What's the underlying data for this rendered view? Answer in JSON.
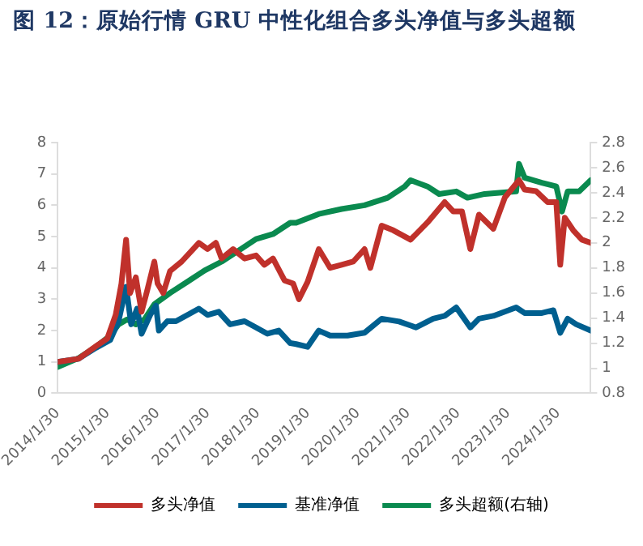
{
  "chart_data": {
    "type": "line",
    "title": "图 12：原始行情 GRU 中性化组合多头净值与多头超额",
    "xlim": [
      "2014-01-30",
      "2024-09-23"
    ],
    "xticks": [
      {
        "value": "2014-01-30",
        "label": "2014/1/30"
      },
      {
        "value": "2015-01-30",
        "label": "2015/1/30"
      },
      {
        "value": "2016-01-30",
        "label": "2016/1/30"
      },
      {
        "value": "2017-01-30",
        "label": "2017/1/30"
      },
      {
        "value": "2018-01-30",
        "label": "2018/1/30"
      },
      {
        "value": "2019-01-30",
        "label": "2019/1/30"
      },
      {
        "value": "2020-01-30",
        "label": "2020/1/30"
      },
      {
        "value": "2021-01-30",
        "label": "2021/1/30"
      },
      {
        "value": "2022-01-30",
        "label": "2022/1/30"
      },
      {
        "value": "2023-01-30",
        "label": "2023/1/30"
      },
      {
        "value": "2024-01-30",
        "label": "2024/1/30"
      }
    ],
    "ylim": [
      0,
      8
    ],
    "yticks": [
      0,
      1,
      2,
      3,
      4,
      5,
      6,
      7,
      8
    ],
    "y2lim": [
      0.8,
      2.8
    ],
    "y2ticks": [
      0.8,
      1,
      1.2,
      1.4,
      1.6,
      1.8,
      2,
      2.2,
      2.4,
      2.6,
      2.8
    ],
    "grid": false,
    "legend": "bottom",
    "marker": "none",
    "line_style": "solid",
    "series": [
      {
        "name": "多头净值",
        "color": "#c0312b",
        "x": [
          "2014-01-30",
          "2014-07-01",
          "2014-11-05",
          "2015-01-27",
          "2015-03-29",
          "2015-05-10",
          "2015-06-13",
          "2015-07-12",
          "2015-08-23",
          "2015-10-04",
          "2015-11-15",
          "2016-01-05",
          "2016-01-29",
          "2016-03-10",
          "2016-04-29",
          "2016-07-22",
          "2016-10-14",
          "2016-11-25",
          "2017-01-27",
          "2017-03-29",
          "2017-05-10",
          "2017-08-02",
          "2017-10-24",
          "2018-01-16",
          "2018-03-18",
          "2018-05-20",
          "2018-08-12",
          "2018-10-14",
          "2018-11-25",
          "2019-01-27",
          "2019-04-19",
          "2019-07-11",
          "2019-10-03",
          "2019-12-26",
          "2020-03-18",
          "2020-04-29",
          "2020-07-21",
          "2020-10-14",
          "2021-02-17",
          "2021-06-20",
          "2021-10-24",
          "2021-12-26",
          "2022-02-27",
          "2022-04-29",
          "2022-07-01",
          "2022-10-14",
          "2023-01-06",
          "2023-04-19",
          "2023-05-30",
          "2023-08-22",
          "2023-11-14",
          "2024-01-16",
          "2024-02-14",
          "2024-03-18",
          "2024-05-19",
          "2024-07-21",
          "2024-09-23"
        ],
        "values": [
          1.0,
          1.1,
          1.5,
          1.75,
          2.5,
          3.5,
          4.9,
          3.2,
          3.7,
          2.6,
          3.3,
          4.2,
          3.5,
          3.2,
          3.9,
          4.2,
          4.6,
          4.8,
          4.6,
          4.8,
          4.3,
          4.6,
          4.3,
          4.4,
          4.1,
          4.3,
          3.6,
          3.5,
          3.0,
          3.55,
          4.6,
          4.0,
          4.1,
          4.2,
          4.6,
          4.0,
          5.35,
          5.2,
          4.9,
          5.45,
          6.1,
          5.8,
          5.8,
          4.6,
          5.7,
          5.25,
          6.25,
          6.8,
          6.5,
          6.45,
          6.1,
          6.1,
          4.1,
          5.6,
          5.2,
          4.9,
          4.8
        ]
      },
      {
        "name": "基准净值",
        "color": "#005f8f",
        "x": [
          "2014-01-30",
          "2014-07-01",
          "2014-11-05",
          "2015-02-17",
          "2015-04-19",
          "2015-06-13",
          "2015-07-20",
          "2015-09-01",
          "2015-10-04",
          "2015-12-06",
          "2016-01-17",
          "2016-02-07",
          "2016-04-09",
          "2016-06-11",
          "2016-09-03",
          "2016-11-25",
          "2017-01-27",
          "2017-04-19",
          "2017-07-11",
          "2017-10-24",
          "2018-01-16",
          "2018-04-09",
          "2018-07-01",
          "2018-09-23",
          "2018-11-05",
          "2019-01-27",
          "2019-04-19",
          "2019-07-11",
          "2019-11-15",
          "2020-03-18",
          "2020-07-21",
          "2020-11-25",
          "2021-03-29",
          "2021-08-01",
          "2021-10-24",
          "2022-01-16",
          "2022-04-29",
          "2022-07-01",
          "2022-10-14",
          "2023-03-29",
          "2023-05-30",
          "2023-10-03",
          "2023-12-26",
          "2024-02-14",
          "2024-04-08",
          "2024-06-10",
          "2024-09-23"
        ],
        "values": [
          1.0,
          1.1,
          1.45,
          1.7,
          2.3,
          3.4,
          2.2,
          2.7,
          1.9,
          2.5,
          2.8,
          2.0,
          2.3,
          2.3,
          2.5,
          2.7,
          2.5,
          2.6,
          2.2,
          2.3,
          2.1,
          1.9,
          2.0,
          1.6,
          1.57,
          1.48,
          2.0,
          1.84,
          1.84,
          1.93,
          2.38,
          2.29,
          2.1,
          2.38,
          2.47,
          2.74,
          2.1,
          2.38,
          2.47,
          2.74,
          2.56,
          2.56,
          2.65,
          1.93,
          2.38,
          2.2,
          2.0
        ]
      },
      {
        "name": "多头超额(右轴)",
        "color": "#0a8a4f",
        "axis": "y2",
        "x": [
          "2014-01-30",
          "2014-07-01",
          "2014-11-05",
          "2015-02-17",
          "2015-04-19",
          "2015-06-21",
          "2015-08-23",
          "2015-10-25",
          "2016-01-05",
          "2016-04-29",
          "2016-09-03",
          "2017-01-06",
          "2017-05-10",
          "2017-09-13",
          "2018-01-16",
          "2018-05-20",
          "2018-09-23",
          "2018-11-05",
          "2019-04-19",
          "2019-10-03",
          "2020-03-18",
          "2020-09-03",
          "2021-01-06",
          "2021-02-17",
          "2021-06-20",
          "2021-09-13",
          "2022-01-16",
          "2022-04-08",
          "2022-08-12",
          "2023-03-29",
          "2023-04-19",
          "2023-05-30",
          "2023-10-03",
          "2024-01-16",
          "2024-02-27",
          "2024-04-08",
          "2024-07-01",
          "2024-09-23"
        ],
        "values": [
          1.01,
          1.08,
          1.17,
          1.26,
          1.35,
          1.39,
          1.35,
          1.39,
          1.51,
          1.6,
          1.69,
          1.78,
          1.85,
          1.94,
          2.03,
          2.07,
          2.16,
          2.16,
          2.23,
          2.27,
          2.3,
          2.36,
          2.45,
          2.5,
          2.45,
          2.39,
          2.41,
          2.36,
          2.39,
          2.41,
          2.63,
          2.52,
          2.48,
          2.45,
          2.25,
          2.41,
          2.41,
          2.5
        ]
      }
    ]
  }
}
